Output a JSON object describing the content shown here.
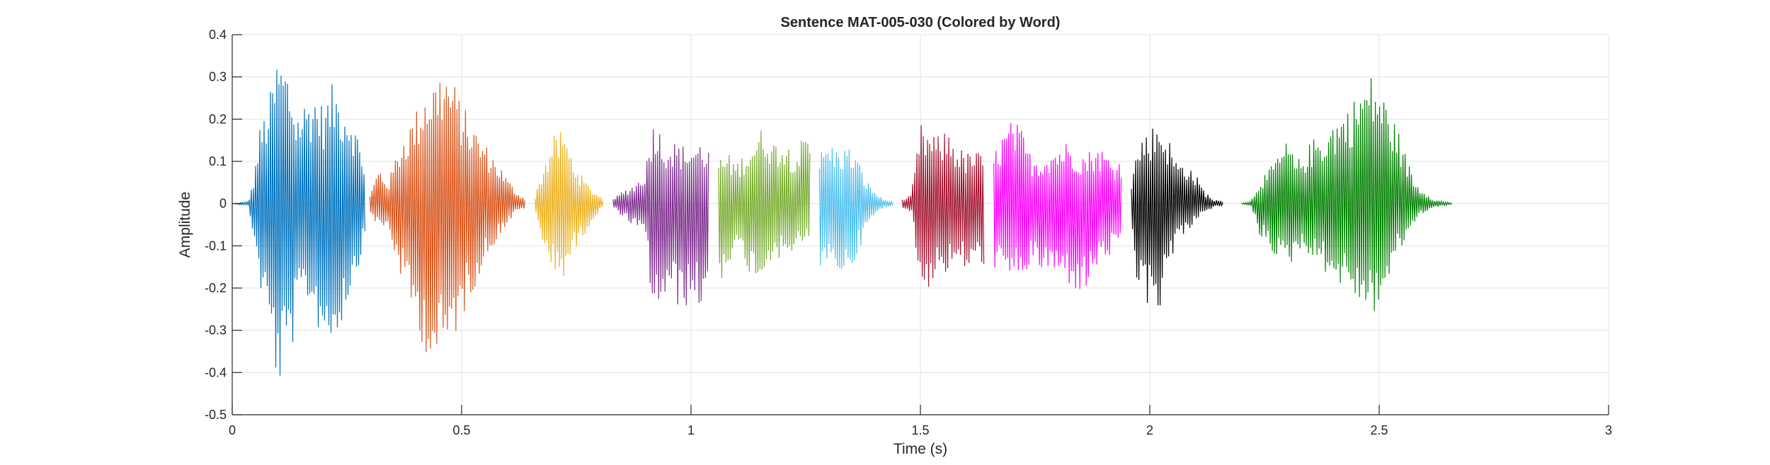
{
  "chart_data": {
    "type": "line",
    "title": "Sentence MAT-005-030 (Colored by Word)",
    "xlabel": "Time (s)",
    "ylabel": "Amplitude",
    "xlim": [
      0,
      3
    ],
    "ylim": [
      -0.5,
      0.4
    ],
    "xticks": [
      0,
      0.5,
      1,
      1.5,
      2,
      2.5,
      3
    ],
    "xtick_labels": [
      "0",
      "0.5",
      "1",
      "1.5",
      "2",
      "2.5",
      "3"
    ],
    "yticks": [
      -0.5,
      -0.4,
      -0.3,
      -0.2,
      -0.1,
      0,
      0.1,
      0.2,
      0.3,
      0.4
    ],
    "ytick_labels": [
      "-0.5",
      "-0.4",
      "-0.3",
      "-0.2",
      "-0.1",
      "0",
      "0.1",
      "0.2",
      "0.3",
      "0.4"
    ],
    "grid": true,
    "series": [
      {
        "color": "#0072BD",
        "envelope_times": [
          0.0,
          0.035,
          0.045,
          0.06,
          0.08,
          0.1,
          0.12,
          0.14,
          0.16,
          0.18,
          0.2,
          0.22,
          0.24,
          0.26,
          0.28,
          0.29
        ],
        "envelope_upper": [
          0.0,
          0.005,
          0.05,
          0.18,
          0.25,
          0.36,
          0.33,
          0.22,
          0.25,
          0.27,
          0.23,
          0.29,
          0.25,
          0.22,
          0.14,
          0.09
        ],
        "envelope_lower": [
          0.0,
          -0.005,
          -0.07,
          -0.2,
          -0.3,
          -0.45,
          -0.39,
          -0.3,
          -0.22,
          -0.28,
          -0.33,
          -0.34,
          -0.28,
          -0.2,
          -0.13,
          -0.08
        ]
      },
      {
        "color": "#D95319",
        "envelope_times": [
          0.3,
          0.32,
          0.34,
          0.36,
          0.38,
          0.4,
          0.42,
          0.44,
          0.46,
          0.48,
          0.5,
          0.52,
          0.54,
          0.56,
          0.58,
          0.6,
          0.62,
          0.64
        ],
        "envelope_upper": [
          0.02,
          0.09,
          0.05,
          0.13,
          0.18,
          0.22,
          0.28,
          0.3,
          0.33,
          0.3,
          0.24,
          0.2,
          0.16,
          0.13,
          0.1,
          0.06,
          0.03,
          0.01
        ],
        "envelope_lower": [
          -0.02,
          -0.06,
          -0.06,
          -0.15,
          -0.22,
          -0.29,
          -0.35,
          -0.39,
          -0.38,
          -0.33,
          -0.28,
          -0.22,
          -0.17,
          -0.12,
          -0.08,
          -0.05,
          -0.02,
          -0.01
        ]
      },
      {
        "color": "#EDB120",
        "envelope_times": [
          0.66,
          0.68,
          0.7,
          0.72,
          0.74,
          0.76,
          0.78,
          0.8,
          0.81
        ],
        "envelope_upper": [
          0.02,
          0.1,
          0.16,
          0.18,
          0.12,
          0.07,
          0.04,
          0.02,
          0.01
        ],
        "envelope_lower": [
          -0.02,
          -0.11,
          -0.17,
          -0.18,
          -0.13,
          -0.09,
          -0.05,
          -0.02,
          -0.01
        ]
      },
      {
        "color": "#7E2F8E",
        "envelope_times": [
          0.83,
          0.85,
          0.88,
          0.9,
          0.92,
          0.94,
          0.96,
          0.98,
          1.0,
          1.02,
          1.04
        ],
        "envelope_upper": [
          0.01,
          0.03,
          0.05,
          0.08,
          0.22,
          0.15,
          0.15,
          0.14,
          0.14,
          0.15,
          0.13
        ],
        "envelope_lower": [
          -0.01,
          -0.03,
          -0.06,
          -0.08,
          -0.29,
          -0.23,
          -0.24,
          -0.25,
          -0.24,
          -0.25,
          -0.2
        ]
      },
      {
        "color": "#77AC30",
        "envelope_times": [
          1.06,
          1.08,
          1.1,
          1.12,
          1.14,
          1.16,
          1.18,
          1.2,
          1.22,
          1.24,
          1.26
        ],
        "envelope_upper": [
          0.11,
          0.12,
          0.1,
          0.13,
          0.16,
          0.19,
          0.15,
          0.16,
          0.13,
          0.15,
          0.16
        ],
        "envelope_lower": [
          -0.2,
          -0.14,
          -0.12,
          -0.15,
          -0.19,
          -0.17,
          -0.12,
          -0.14,
          -0.12,
          -0.11,
          -0.1
        ]
      },
      {
        "color": "#4DBEEE",
        "envelope_times": [
          1.28,
          1.3,
          1.32,
          1.34,
          1.36,
          1.38,
          1.4,
          1.42,
          1.44
        ],
        "envelope_upper": [
          0.12,
          0.15,
          0.13,
          0.14,
          0.12,
          0.06,
          0.03,
          0.01,
          0.005
        ],
        "envelope_lower": [
          -0.16,
          -0.17,
          -0.16,
          -0.18,
          -0.13,
          -0.07,
          -0.03,
          -0.01,
          -0.005
        ]
      },
      {
        "color": "#A2142F",
        "envelope_times": [
          1.46,
          1.48,
          1.5,
          1.52,
          1.54,
          1.56,
          1.58,
          1.6,
          1.62,
          1.64
        ],
        "envelope_upper": [
          0.01,
          0.02,
          0.19,
          0.17,
          0.16,
          0.18,
          0.14,
          0.12,
          0.13,
          0.11
        ],
        "envelope_lower": [
          -0.01,
          -0.02,
          -0.21,
          -0.2,
          -0.16,
          -0.17,
          -0.15,
          -0.16,
          -0.15,
          -0.16
        ]
      },
      {
        "color": "#FF00FF",
        "envelope_times": [
          1.66,
          1.68,
          1.7,
          1.72,
          1.74,
          1.76,
          1.78,
          1.8,
          1.82,
          1.84,
          1.86,
          1.88,
          1.9,
          1.92,
          1.94
        ],
        "envelope_upper": [
          0.12,
          0.17,
          0.2,
          0.18,
          0.12,
          0.11,
          0.13,
          0.14,
          0.15,
          0.13,
          0.12,
          0.14,
          0.13,
          0.1,
          0.11
        ],
        "envelope_lower": [
          -0.15,
          -0.18,
          -0.2,
          -0.17,
          -0.16,
          -0.16,
          -0.17,
          -0.18,
          -0.19,
          -0.21,
          -0.22,
          -0.16,
          -0.14,
          -0.12,
          -0.13
        ]
      },
      {
        "color": "#000000",
        "envelope_times": [
          1.96,
          1.97,
          1.98,
          2.0,
          2.02,
          2.04,
          2.06,
          2.08,
          2.1,
          2.12,
          2.14,
          2.16
        ],
        "envelope_upper": [
          0.06,
          0.12,
          0.16,
          0.18,
          0.2,
          0.16,
          0.1,
          0.1,
          0.07,
          0.03,
          0.01,
          0.005
        ],
        "envelope_lower": [
          -0.08,
          -0.18,
          -0.23,
          -0.25,
          -0.26,
          -0.15,
          -0.09,
          -0.07,
          -0.04,
          -0.02,
          -0.01,
          -0.005
        ]
      },
      {
        "color": "#008000",
        "envelope_times": [
          2.2,
          2.22,
          2.24,
          2.26,
          2.28,
          2.3,
          2.32,
          2.34,
          2.36,
          2.38,
          2.4,
          2.42,
          2.44,
          2.46,
          2.48,
          2.5,
          2.52,
          2.54,
          2.56,
          2.58,
          2.6,
          2.62,
          2.64,
          2.66
        ],
        "envelope_upper": [
          0.002,
          0.005,
          0.06,
          0.08,
          0.12,
          0.15,
          0.1,
          0.13,
          0.16,
          0.17,
          0.2,
          0.22,
          0.24,
          0.28,
          0.31,
          0.29,
          0.23,
          0.18,
          0.11,
          0.05,
          0.03,
          0.01,
          0.005,
          0.002
        ],
        "envelope_lower": [
          -0.002,
          -0.005,
          -0.08,
          -0.1,
          -0.14,
          -0.16,
          -0.12,
          -0.11,
          -0.14,
          -0.16,
          -0.18,
          -0.2,
          -0.22,
          -0.24,
          -0.27,
          -0.25,
          -0.19,
          -0.13,
          -0.08,
          -0.04,
          -0.02,
          -0.01,
          -0.005,
          -0.002
        ]
      }
    ]
  }
}
